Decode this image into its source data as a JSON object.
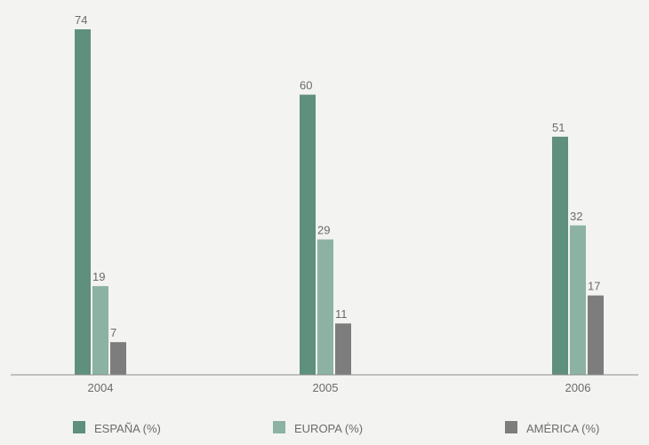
{
  "chart_data": {
    "type": "bar",
    "categories": [
      "2004",
      "2005",
      "2006"
    ],
    "series": [
      {
        "name": "ESPAÑA (%)",
        "values": [
          74,
          60,
          51
        ],
        "color": "#5f8f7d"
      },
      {
        "name": "EUROPA (%)",
        "values": [
          19,
          29,
          32
        ],
        "color": "#8bb2a2"
      },
      {
        "name": "AMÉRICA (%)",
        "values": [
          7,
          11,
          17
        ],
        "color": "#7d7d7d"
      }
    ],
    "ylim": [
      0,
      74
    ],
    "grid": false,
    "legend_position": "bottom",
    "axis_color": "#8e8e8e",
    "text_color": "#6b6b6b",
    "background": "#f3f3f2"
  }
}
